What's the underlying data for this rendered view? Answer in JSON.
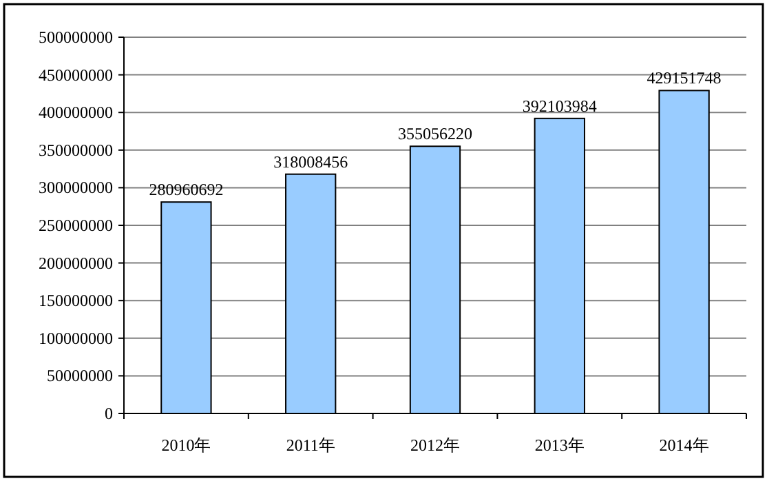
{
  "chart_data": {
    "type": "bar",
    "categories": [
      "2010年",
      "2011年",
      "2012年",
      "2013年",
      "2014年"
    ],
    "values": [
      280960692,
      318008456,
      355056220,
      392103984,
      429151748
    ],
    "color": "#99ccff",
    "ylim": [
      0,
      500000000
    ],
    "yticks": [
      0,
      50000000,
      100000000,
      150000000,
      200000000,
      250000000,
      300000000,
      350000000,
      400000000,
      450000000,
      500000000
    ],
    "grid": "y",
    "data_labels": true
  }
}
